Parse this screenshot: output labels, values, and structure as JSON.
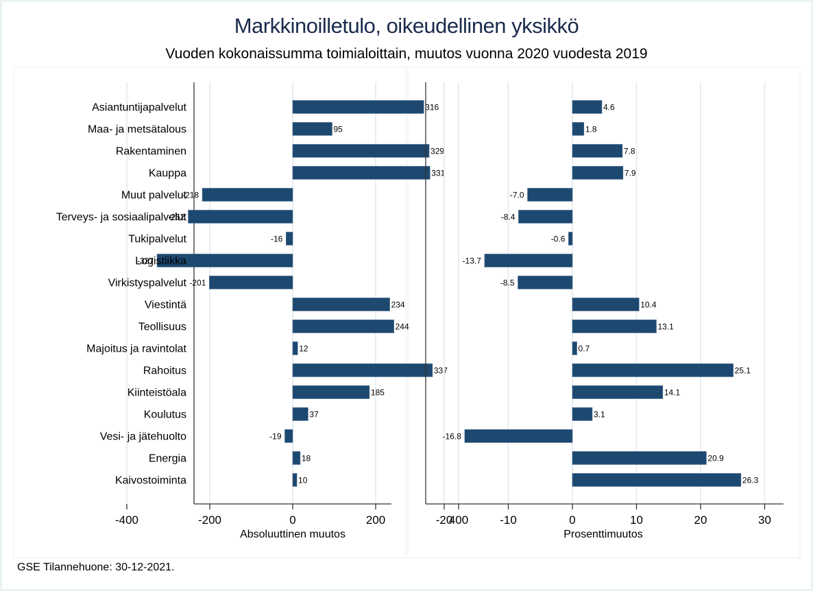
{
  "title": "Markkinoilletulo, oikeudellinen yksikkö",
  "subtitle": "Vuoden kokonaissumma toimialoittain, muutos vuonna 2020 vuodesta 2019",
  "footer": "GSE Tilannehuone: 30-12-2021.",
  "colors": {
    "bar": "#1d4870",
    "grid": "#e6eef1",
    "axis": "#333333",
    "title": "#1a2b4c",
    "background": "#eaf2f3"
  },
  "chart_data": [
    {
      "type": "bar",
      "orientation": "horizontal",
      "panel": "left",
      "xlabel": "Absoluuttinen muutos",
      "xlim": [
        -460,
        475
      ],
      "xticks": [
        -400,
        -200,
        0,
        200,
        400
      ],
      "grid": true,
      "categories": [
        "Asiantuntijapalvelut",
        "Maa- ja metsätalous",
        "Rakentaminen",
        "Kauppa",
        "Muut palvelut",
        "Terveys- ja sosiaalipalvelut",
        "Tukipalvelut",
        "Logistiikka",
        "Virkistyspalvelut",
        "Viestintä",
        "Teollisuus",
        "Majoitus ja ravintolat",
        "Rahoitus",
        "Kiinteistöala",
        "Koulutus",
        "Vesi- ja jätehuolto",
        "Energia",
        "Kaivostoiminta"
      ],
      "values": [
        316,
        95,
        329,
        331,
        -218,
        -252,
        -16,
        -327,
        -201,
        234,
        244,
        12,
        337,
        185,
        37,
        -19,
        18,
        10
      ],
      "labels": [
        "316",
        "95",
        "329",
        "331",
        "-218",
        "-252",
        "-16",
        "-327",
        "-201",
        "234",
        "244",
        "12",
        "337",
        "185",
        "37",
        "-19",
        "18",
        "10"
      ]
    },
    {
      "type": "bar",
      "orientation": "horizontal",
      "panel": "right",
      "xlabel": "Prosenttimuutos",
      "xlim": [
        -23,
        33
      ],
      "xticks": [
        -20,
        -10,
        0,
        10,
        20,
        30
      ],
      "grid": true,
      "categories": [
        "Asiantuntijapalvelut",
        "Maa- ja metsätalous",
        "Rakentaminen",
        "Kauppa",
        "Muut palvelut",
        "Terveys- ja sosiaalipalvelut",
        "Tukipalvelut",
        "Logistiikka",
        "Virkistyspalvelut",
        "Viestintä",
        "Teollisuus",
        "Majoitus ja ravintolat",
        "Rahoitus",
        "Kiinteistöala",
        "Koulutus",
        "Vesi- ja jätehuolto",
        "Energia",
        "Kaivostoiminta"
      ],
      "values": [
        4.6,
        1.8,
        7.8,
        7.9,
        -7.0,
        -8.4,
        -0.6,
        -13.7,
        -8.5,
        10.4,
        13.1,
        0.7,
        25.1,
        14.1,
        3.1,
        -16.8,
        20.9,
        26.3
      ],
      "labels": [
        "4.6",
        "1.8",
        "7.8",
        "7.9",
        "-7.0",
        "-8.4",
        "-0.6",
        "-13.7",
        "-8.5",
        "10.4",
        "13.1",
        "0.7",
        "25.1",
        "14.1",
        "3.1",
        "-16.8",
        "20.9",
        "26.3"
      ]
    }
  ]
}
